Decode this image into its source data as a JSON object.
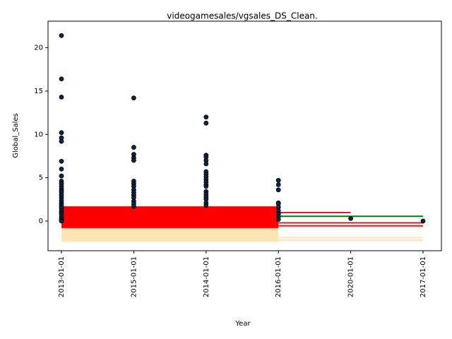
{
  "chart_data": {
    "type": "scatter",
    "title": "videogamesales/vgsales_DS_Clean.",
    "xlabel": "Year",
    "ylabel": "Global_Sales",
    "categories": [
      "2013-01-01",
      "2015-01-01",
      "2014-01-01",
      "2016-01-01",
      "2020-01-01",
      "2017-01-01"
    ],
    "ylim": [
      -3.42,
      23.06
    ],
    "yticks": [
      0,
      5,
      10,
      15,
      20
    ],
    "series": [
      {
        "color": "#0d2545",
        "x": [
          "2013-01-01",
          "2013-01-01",
          "2013-01-01",
          "2013-01-01",
          "2013-01-01",
          "2013-01-01",
          "2013-01-01",
          "2013-01-01",
          "2013-01-01",
          "2013-01-01",
          "2013-01-01",
          "2013-01-01",
          "2013-01-01",
          "2013-01-01",
          "2013-01-01",
          "2013-01-01",
          "2013-01-01",
          "2013-01-01",
          "2013-01-01",
          "2013-01-01",
          "2013-01-01",
          "2013-01-01",
          "2013-01-01",
          "2013-01-01",
          "2013-01-01",
          "2013-01-01",
          "2013-01-01",
          "2013-01-01",
          "2013-01-01",
          "2015-01-01",
          "2015-01-01",
          "2015-01-01",
          "2015-01-01",
          "2015-01-01",
          "2015-01-01",
          "2015-01-01",
          "2015-01-01",
          "2015-01-01",
          "2015-01-01",
          "2015-01-01",
          "2015-01-01",
          "2015-01-01",
          "2015-01-01",
          "2015-01-01",
          "2014-01-01",
          "2014-01-01",
          "2014-01-01",
          "2014-01-01",
          "2014-01-01",
          "2014-01-01",
          "2014-01-01",
          "2014-01-01",
          "2014-01-01",
          "2014-01-01",
          "2014-01-01",
          "2014-01-01",
          "2014-01-01",
          "2014-01-01",
          "2014-01-01",
          "2014-01-01",
          "2014-01-01",
          "2014-01-01",
          "2014-01-01",
          "2016-01-01",
          "2016-01-01",
          "2016-01-01",
          "2016-01-01",
          "2016-01-01",
          "2016-01-01",
          "2016-01-01",
          "2016-01-01",
          "2016-01-01",
          "2016-01-01",
          "2020-01-01",
          "2017-01-01"
        ],
        "values": [
          21.4,
          16.4,
          14.3,
          10.2,
          9.6,
          9.2,
          6.9,
          6.0,
          5.2,
          4.6,
          4.3,
          4.0,
          3.7,
          3.5,
          3.3,
          3.0,
          2.7,
          2.4,
          2.1,
          1.9,
          1.7,
          1.5,
          1.2,
          1.0,
          0.8,
          0.5,
          0.3,
          0.1,
          0,
          14.2,
          8.5,
          7.7,
          7.3,
          7.0,
          4.6,
          4.3,
          4.0,
          3.6,
          3.3,
          3.0,
          2.7,
          2.3,
          2.0,
          1.7,
          12.0,
          11.3,
          7.6,
          7.4,
          7.0,
          6.6,
          5.7,
          5.4,
          5.1,
          4.8,
          4.5,
          4.2,
          4.0,
          3.4,
          3.1,
          2.8,
          2.5,
          2.1,
          1.8,
          4.7,
          4.2,
          3.6,
          2.1,
          2.0,
          1.6,
          1.2,
          0.8,
          0.5,
          0.2,
          0.3,
          0.0
        ]
      }
    ],
    "areas": [
      {
        "color": "#ffe4b5",
        "x": [
          "2013-01-01",
          "2016-01-01"
        ],
        "high": [
          -0.8,
          -0.8
        ],
        "low": [
          -2.4,
          -2.4
        ]
      },
      {
        "color": "#ff0000",
        "x": [
          "2013-01-01",
          "2016-01-01"
        ],
        "high": [
          1.7,
          1.7
        ],
        "low": [
          -0.8,
          -0.8
        ]
      }
    ],
    "lines": [
      {
        "color": "#ffe4b5",
        "x": [
          "2016-01-01",
          "2017-01-01"
        ],
        "values": [
          -1.9,
          -1.9
        ]
      },
      {
        "color": "#ffe4b5",
        "x": [
          "2016-01-01",
          "2017-01-01"
        ],
        "values": [
          -2.2,
          -2.2
        ]
      },
      {
        "color": "#d62020",
        "x": [
          "2016-01-01",
          "2020-01-01"
        ],
        "values": [
          0.98,
          0.98
        ]
      },
      {
        "color": "#008000",
        "x": [
          "2016-01-01",
          "2017-01-01"
        ],
        "values": [
          0.55,
          0.55
        ]
      },
      {
        "color": "#d62020",
        "x": [
          "2016-01-01",
          "2017-01-01"
        ],
        "values": [
          -0.2,
          -0.2
        ]
      },
      {
        "color": "#d62020",
        "x": [
          "2016-01-01",
          "2017-01-01"
        ],
        "values": [
          -0.55,
          -0.55
        ]
      }
    ]
  }
}
